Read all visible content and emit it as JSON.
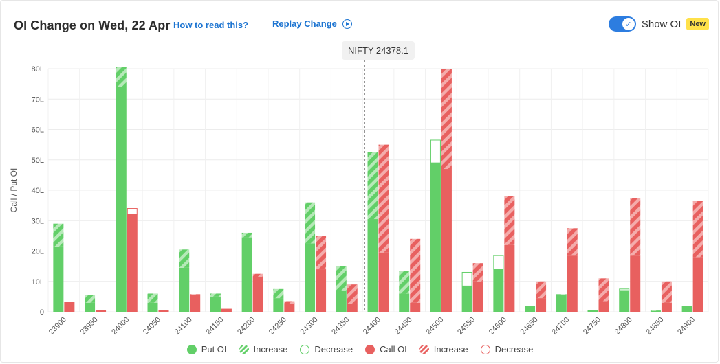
{
  "header": {
    "title": "OI Change on Wed, 22 Apr",
    "how_link": "How to read this?",
    "replay_link": "Replay Change",
    "toggle_label": "Show OI",
    "badge": "New"
  },
  "tooltip": {
    "text": "NIFTY 24378.1"
  },
  "colors": {
    "put": "#62cf68",
    "put_light": "#b6e9b8",
    "call": "#e8605f",
    "call_light": "#f4acab",
    "accent": "#1c74d1"
  },
  "chart_data": {
    "type": "bar",
    "ylabel": "Call / Put OI",
    "ylim": [
      0,
      80
    ],
    "yticks": [
      0,
      10,
      20,
      30,
      40,
      50,
      60,
      70,
      80
    ],
    "ytick_labels": [
      "0",
      "10L",
      "20L",
      "30L",
      "40L",
      "50L",
      "60L",
      "70L",
      "80L"
    ],
    "categories": [
      "23900",
      "23950",
      "24000",
      "24050",
      "24100",
      "24150",
      "24200",
      "24250",
      "24300",
      "24350",
      "24400",
      "24450",
      "24500",
      "24550",
      "24600",
      "24650",
      "24700",
      "24750",
      "24800",
      "24850",
      "24900"
    ],
    "spot_marker": {
      "label": "NIFTY 24378.1",
      "value": 24378.1
    },
    "series": [
      {
        "name": "Put OI",
        "base": [
          21.5,
          3,
          74,
          3,
          14.5,
          5,
          24.5,
          4.5,
          22.5,
          7,
          30.5,
          6,
          49,
          8.5,
          14,
          2,
          5.5,
          0.5,
          7,
          0.3,
          2
        ],
        "increase": [
          7.5,
          2.5,
          6.5,
          3,
          6,
          1,
          1.5,
          3,
          13.5,
          8,
          22,
          7.5,
          0,
          0,
          0,
          0,
          0.3,
          0,
          0,
          0.3,
          0
        ],
        "decrease": [
          0,
          0,
          0,
          0,
          0,
          0,
          0,
          0,
          0,
          0,
          0,
          0,
          7.5,
          4.5,
          4.5,
          0,
          0,
          0,
          0.5,
          0,
          0
        ]
      },
      {
        "name": "Call OI",
        "base": [
          3.2,
          0.5,
          32,
          0.5,
          5.5,
          1,
          11.5,
          2.5,
          14,
          2.5,
          19.5,
          3,
          47,
          10,
          22,
          4.5,
          18.5,
          3.5,
          18.5,
          3,
          18
        ],
        "increase": [
          0,
          0,
          0,
          0,
          0.3,
          0,
          1,
          1,
          11,
          6.5,
          35.5,
          21,
          33,
          6,
          16,
          5.5,
          9,
          7.5,
          19,
          7,
          18.5
        ],
        "decrease": [
          0,
          0,
          2,
          0,
          0,
          0,
          0,
          0,
          0,
          0,
          0,
          0,
          0,
          0,
          0,
          0,
          0,
          0,
          0,
          0,
          0
        ]
      }
    ],
    "legend": [
      "Put OI",
      "Increase",
      "Decrease",
      "Call OI",
      "Increase",
      "Decrease"
    ],
    "grid": true,
    "legend_position": "bottom"
  }
}
